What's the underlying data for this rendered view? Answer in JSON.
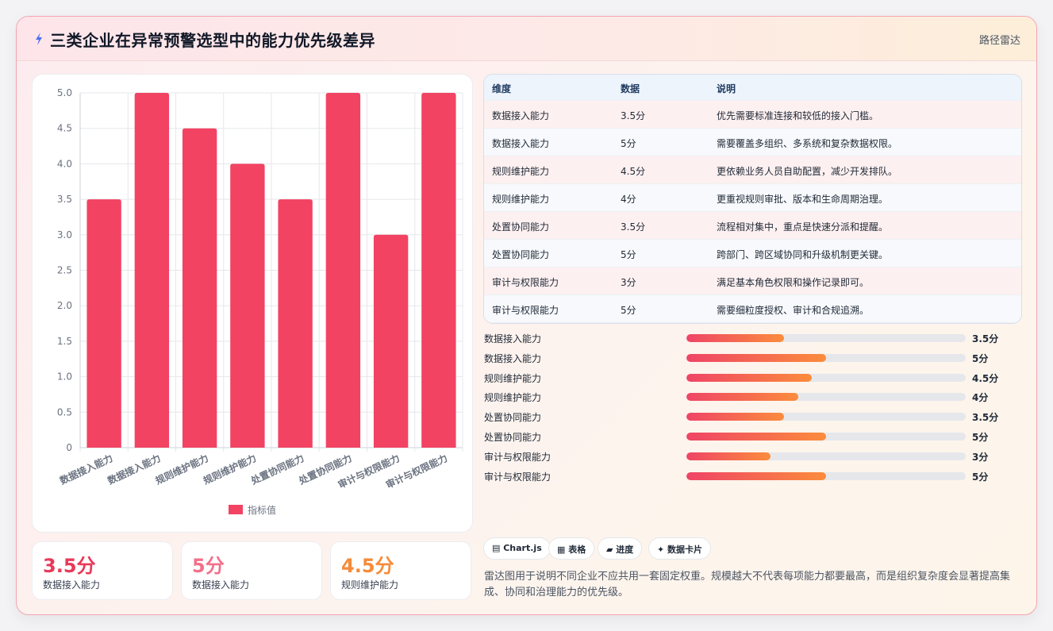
{
  "header": {
    "title": "三类企业在异常预警选型中的能力优先级差异",
    "right_label": "路径雷达",
    "icon": "lightning-icon"
  },
  "colors": {
    "bar": "#f24363",
    "accent_orange": "#f58b3a",
    "accent_pink": "#f2708a"
  },
  "chart_data": {
    "type": "bar",
    "categories": [
      "数据接入能力",
      "数据接入能力",
      "规则维护能力",
      "规则维护能力",
      "处置协同能力",
      "处置协同能力",
      "审计与权限能力",
      "审计与权限能力"
    ],
    "series": [
      {
        "name": "指标值",
        "values": [
          3.5,
          5,
          4.5,
          4,
          3.5,
          5,
          3,
          5
        ]
      }
    ],
    "ylim": [
      0,
      5
    ],
    "yticks": [
      "0",
      "0.5",
      "1.0",
      "1.5",
      "2.0",
      "2.5",
      "3.0",
      "3.5",
      "4.0",
      "4.5",
      "5.0"
    ],
    "grid": true,
    "legend": "bottom"
  },
  "stats": [
    {
      "value": "3.5分",
      "label": "数据接入能力",
      "color": "#e8395a"
    },
    {
      "value": "5分",
      "label": "数据接入能力",
      "color": "#f2708a"
    },
    {
      "value": "4.5分",
      "label": "规则维护能力",
      "color": "#f58b3a"
    }
  ],
  "table": {
    "headers": [
      "维度",
      "数据",
      "说明"
    ],
    "rows": [
      [
        "数据接入能力",
        "3.5分",
        "优先需要标准连接和较低的接入门槛。"
      ],
      [
        "数据接入能力",
        "5分",
        "需要覆盖多组织、多系统和复杂数据权限。"
      ],
      [
        "规则维护能力",
        "4.5分",
        "更依赖业务人员自助配置，减少开发排队。"
      ],
      [
        "规则维护能力",
        "4分",
        "更重视规则审批、版本和生命周期治理。"
      ],
      [
        "处置协同能力",
        "3.5分",
        "流程相对集中，重点是快速分派和提醒。"
      ],
      [
        "处置协同能力",
        "5分",
        "跨部门、跨区域协同和升级机制更关键。"
      ],
      [
        "审计与权限能力",
        "3分",
        "满足基本角色权限和操作记录即可。"
      ],
      [
        "审计与权限能力",
        "5分",
        "需要细粒度授权、审计和合规追溯。"
      ]
    ]
  },
  "progress": {
    "max": 10,
    "items": [
      {
        "label": "数据接入能力",
        "value": 3.5,
        "text": "3.5分"
      },
      {
        "label": "数据接入能力",
        "value": 5,
        "text": "5分"
      },
      {
        "label": "规则维护能力",
        "value": 4.5,
        "text": "4.5分"
      },
      {
        "label": "规则维护能力",
        "value": 4,
        "text": "4分"
      },
      {
        "label": "处置协同能力",
        "value": 3.5,
        "text": "3.5分"
      },
      {
        "label": "处置协同能力",
        "value": 5,
        "text": "5分"
      },
      {
        "label": "审计与权限能力",
        "value": 3,
        "text": "3分"
      },
      {
        "label": "审计与权限能力",
        "value": 5,
        "text": "5分"
      }
    ]
  },
  "tags": [
    {
      "icon": "chart-icon",
      "glyph": "▤",
      "label": "Chart.js"
    },
    {
      "icon": "table-icon",
      "glyph": "▦",
      "label": "表格"
    },
    {
      "icon": "progress-icon",
      "glyph": "▰",
      "label": "进度"
    },
    {
      "icon": "sparkle-icon",
      "glyph": "✦",
      "label": "数据卡片"
    }
  ],
  "description": "雷达图用于说明不同企业不应共用一套固定权重。规模越大不代表每项能力都要最高，而是组织复杂度会显著提高集成、协同和治理能力的优先级。"
}
